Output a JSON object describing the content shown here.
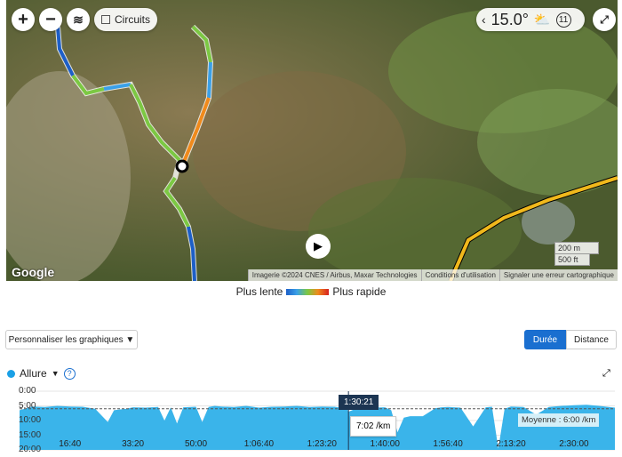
{
  "map": {
    "zoom_in": "+",
    "zoom_out": "−",
    "layers_icon": "layers-icon",
    "circuits_label": "Circuits",
    "circuits_checked": false,
    "weather": {
      "temperature": "15.0°",
      "icon": "partly-sunny-icon",
      "hour": "11"
    },
    "scale": [
      "200 m",
      "500 ft"
    ],
    "attribution": [
      "Imagerie ©2024 CNES / Airbus, Maxar Technologies",
      "Conditions d'utilisation",
      "Signaler une erreur cartographique"
    ],
    "google_logo": "Google"
  },
  "legend": {
    "slow": "Plus lente",
    "fast": "Plus rapide"
  },
  "customize_label": "Personnaliser les graphiques ▼",
  "toggle": {
    "duration": "Durée",
    "distance": "Distance",
    "active": "duration"
  },
  "chart": {
    "metric": "Allure",
    "dropdown": "▼",
    "help": "?",
    "series_color": "#3ab4ea",
    "tooltip_time": "1:30:21",
    "tooltip_value": "7:02 /km",
    "average_label": "Moyenne : 6:00 /km"
  },
  "chart_data": {
    "type": "area",
    "ylabel": "",
    "xlabel": "",
    "y_ticks": [
      "0:00",
      "5:00",
      "10:00",
      "15:00",
      "20:00"
    ],
    "ylim": [
      0,
      20
    ],
    "y_inverted": true,
    "x_ticks": [
      "16:40",
      "33:20",
      "50:00",
      "1:06:40",
      "1:23:20",
      "1:40:00",
      "1:56:40",
      "2:13:20",
      "2:30:00"
    ],
    "x_tick_values": [
      1000,
      2000,
      3000,
      4000,
      5000,
      6000,
      7000,
      8000,
      9000
    ],
    "xlim": [
      200,
      9650
    ],
    "average": 6.0,
    "cursor_x": 5421,
    "x": [
      200,
      400,
      600,
      800,
      1000,
      1200,
      1400,
      1600,
      1700,
      1800,
      1900,
      2000,
      2200,
      2400,
      2500,
      2600,
      2700,
      2800,
      3000,
      3100,
      3200,
      3300,
      3400,
      3600,
      3800,
      4000,
      4200,
      4400,
      4600,
      4800,
      5000,
      5200,
      5400,
      5421,
      5600,
      5800,
      6000,
      6100,
      6200,
      6300,
      6400,
      6600,
      6800,
      6900,
      7000,
      7200,
      7400,
      7600,
      7700,
      7800,
      7900,
      8000,
      8200,
      8400,
      8600,
      8800,
      9000,
      9200,
      9400,
      9650
    ],
    "y": [
      6.5,
      5.2,
      5.4,
      5.0,
      5.2,
      5.3,
      6.0,
      10.5,
      6.5,
      6.2,
      6.0,
      5.5,
      5.6,
      5.4,
      10.0,
      5.5,
      11.0,
      5.5,
      5.3,
      10.5,
      5.4,
      5.0,
      5.2,
      5.4,
      5.0,
      5.6,
      5.3,
      5.2,
      5.0,
      5.4,
      5.2,
      5.3,
      6.0,
      7.0,
      5.4,
      5.6,
      5.5,
      6.5,
      14.0,
      9.0,
      8.5,
      8.5,
      5.8,
      5.5,
      5.4,
      5.6,
      12.0,
      5.5,
      5.3,
      19.5,
      6.0,
      5.2,
      5.4,
      8.0,
      5.4,
      5.0,
      4.8,
      4.6,
      5.0,
      5.6
    ]
  }
}
